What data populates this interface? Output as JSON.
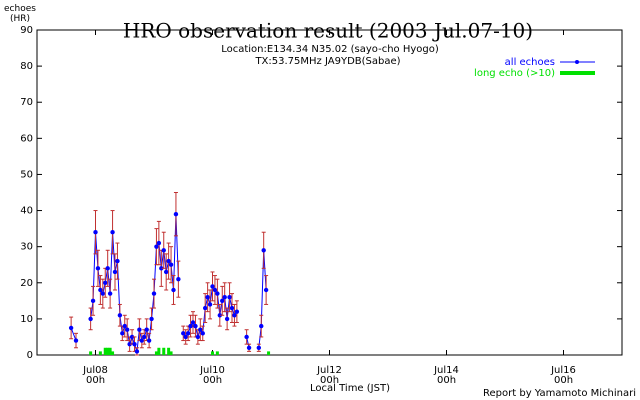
{
  "chart_data": {
    "type": "line",
    "title": "HRO observation result (2003 Jul.07-10)",
    "subtitle": [
      "Location:E134.34 N35.02 (sayo-cho Hyogo)",
      "TX:53.75MHz JA9YDB(Sabae)"
    ],
    "y_label": "echoes\n(HR)",
    "x_label": "Local Time (JST)",
    "footer": "Report by Yamamoto Michinari",
    "xlim": [
      0,
      240
    ],
    "xticks": [
      {
        "value": 24,
        "label": "Jul08\n00h"
      },
      {
        "value": 72,
        "label": "Jul10\n00h"
      },
      {
        "value": 120,
        "label": "Jul12\n00h"
      },
      {
        "value": 168,
        "label": "Jul14\n00h"
      },
      {
        "value": 216,
        "label": "Jul16\n00h"
      }
    ],
    "ylim": [
      0,
      90
    ],
    "yticks": [
      0,
      10,
      20,
      30,
      40,
      50,
      60,
      70,
      80,
      90
    ],
    "legend": "top-right",
    "error_color": "#c03030",
    "series": [
      {
        "name": "all echoes",
        "color": "#0000ff",
        "x": [
          14,
          16,
          19,
          22,
          23,
          24,
          25,
          26,
          27,
          28,
          29,
          30,
          31,
          32,
          33,
          34,
          35,
          36,
          37,
          38,
          39,
          40,
          41,
          42,
          43,
          44,
          45,
          46,
          47,
          48,
          49,
          50,
          51,
          52,
          53,
          54,
          55,
          56,
          57,
          58,
          59,
          60,
          61,
          62,
          63,
          64,
          65,
          66,
          67,
          68,
          69,
          70,
          71,
          72,
          73,
          74,
          75,
          76,
          77,
          78,
          79,
          80,
          81,
          82,
          84,
          86,
          87,
          89,
          91,
          92,
          93,
          94
        ],
        "values": [
          7.5,
          4,
          null,
          10,
          15,
          34,
          24,
          18,
          17,
          20,
          24,
          17,
          34,
          23,
          26,
          11,
          6,
          8,
          7,
          3,
          5,
          3,
          1,
          7,
          4,
          5,
          7,
          4,
          10,
          17,
          30,
          31,
          24,
          29,
          23,
          26,
          25,
          18,
          39,
          21,
          null,
          6,
          5,
          6,
          8,
          9,
          8,
          5,
          7,
          6,
          13,
          16,
          14,
          19,
          18,
          17,
          11,
          15,
          16,
          10,
          16,
          13,
          11,
          12,
          null,
          5,
          2,
          null,
          2,
          8,
          29,
          18
        ],
        "errors": [
          3,
          2,
          null,
          3,
          4,
          6,
          5,
          4,
          4,
          4,
          5,
          4,
          6,
          5,
          5,
          3,
          2,
          3,
          3,
          2,
          2,
          2,
          1,
          3,
          2,
          2,
          3,
          2,
          3,
          4,
          5,
          6,
          5,
          5,
          5,
          5,
          5,
          4,
          6,
          5,
          null,
          2,
          2,
          2,
          3,
          3,
          3,
          2,
          3,
          2,
          4,
          4,
          4,
          4,
          4,
          4,
          3,
          4,
          4,
          3,
          4,
          4,
          3,
          3,
          null,
          2,
          1,
          null,
          1,
          3,
          5,
          4
        ]
      },
      {
        "name": "long echo (>10)",
        "color": "#00e000",
        "x": [
          22,
          26,
          28,
          29,
          30,
          31,
          49,
          50,
          52,
          54,
          55,
          72,
          74,
          95
        ],
        "values": [
          1,
          1,
          2,
          2,
          2,
          1,
          1,
          2,
          2,
          2,
          1,
          1,
          1,
          1
        ]
      }
    ]
  }
}
